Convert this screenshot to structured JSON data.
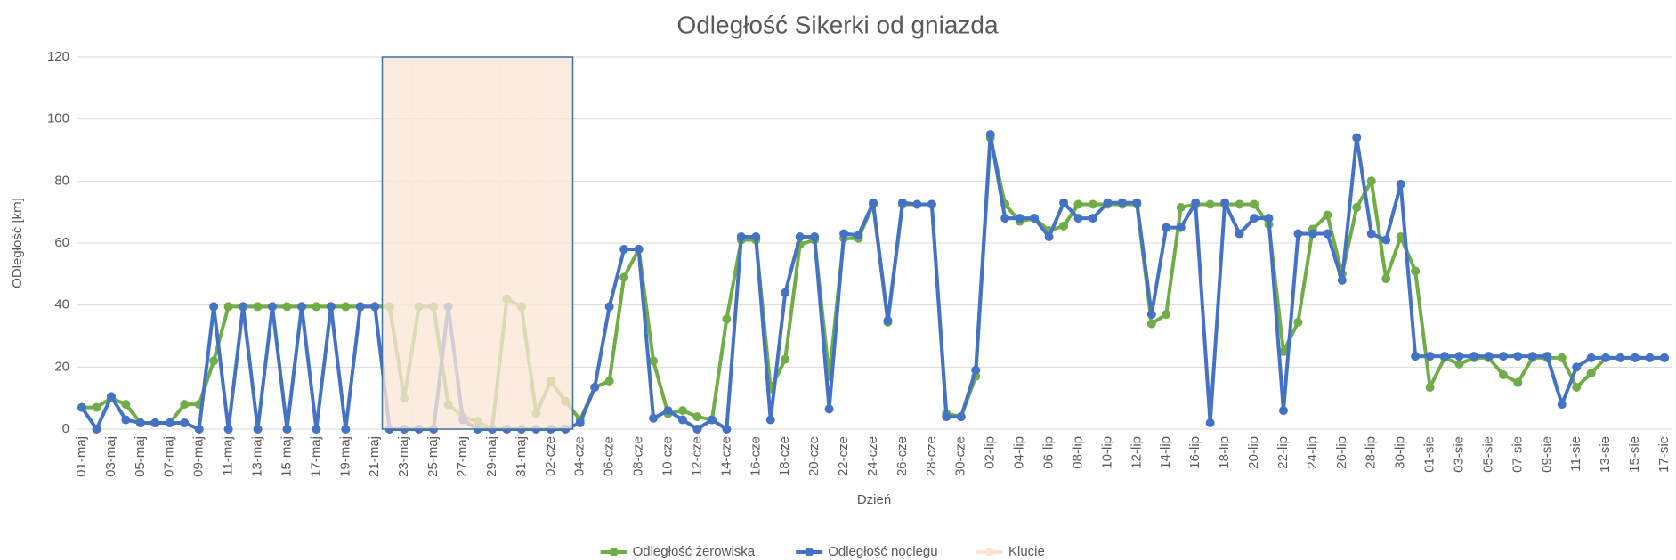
{
  "chart_data": {
    "type": "line",
    "title": "Odległość Sikerki od gniazda",
    "xlabel": "Dzień",
    "ylabel": "ODległość [km]",
    "categories": [
      "01-maj",
      null,
      "03-maj",
      null,
      "05-maj",
      null,
      "07-maj",
      null,
      "09-maj",
      null,
      "11-maj",
      null,
      "13-maj",
      null,
      "15-maj",
      null,
      "17-maj",
      null,
      "19-maj",
      null,
      "21-maj",
      null,
      "23-maj",
      null,
      "25-maj",
      null,
      "27-maj",
      null,
      "29-maj",
      null,
      "31-maj",
      null,
      "02-cze",
      null,
      "04-cze",
      null,
      "06-cze",
      null,
      "08-cze",
      null,
      "10-cze",
      null,
      "12-cze",
      null,
      "14-cze",
      null,
      "16-cze",
      null,
      "18-cze",
      null,
      "20-cze",
      null,
      "22-cze",
      null,
      "24-cze",
      null,
      "26-cze",
      null,
      "28-cze",
      null,
      "30-cze",
      null,
      "02-lip",
      null,
      "04-lip",
      null,
      "06-lip",
      null,
      "08-lip",
      null,
      "10-lip",
      null,
      "12-lip",
      null,
      "14-lip",
      null,
      "16-lip",
      null,
      "18-lip",
      null,
      "20-lip",
      null,
      "22-lip",
      null,
      "24-lip",
      null,
      "26-lip",
      null,
      "28-lip",
      null,
      "30-lip",
      null,
      "01-sie",
      null,
      "03-sie",
      null,
      "05-sie",
      null,
      "07-sie",
      null,
      "09-sie",
      null,
      "11-sie",
      null,
      "13-sie",
      null,
      "15-sie",
      null,
      "17-sie"
    ],
    "series": [
      {
        "name": "Odległość żerowiska",
        "color": "#70ad47",
        "values": [
          7,
          7,
          10,
          8,
          2,
          2,
          2,
          8,
          8,
          22,
          39.5,
          39.5,
          39.5,
          39.5,
          39.5,
          39.5,
          39.5,
          39.5,
          39.5,
          39.5,
          39.5,
          39.5,
          10,
          39.5,
          39.5,
          8,
          4,
          2.5,
          0,
          42,
          39.5,
          5,
          15.5,
          9,
          3,
          13.5,
          15.5,
          49,
          58,
          22,
          5,
          6,
          4,
          3,
          35.5,
          61,
          61,
          13,
          22.5,
          59.5,
          61,
          17,
          61.5,
          61.5,
          72.5,
          34.5,
          72.5,
          72.5,
          72.5,
          5,
          4,
          17,
          94,
          72.5,
          67,
          68,
          64,
          65.5,
          72.5,
          72.5,
          72.5,
          72.5,
          72.5,
          34,
          37,
          71.5,
          72.5,
          72.5,
          72.5,
          72.5,
          72.5,
          66,
          25,
          34.5,
          64.5,
          69,
          50,
          71.5,
          80,
          48.5,
          62,
          51,
          13.5,
          23,
          21,
          23,
          23,
          17.5,
          15,
          23,
          23,
          23,
          13.5,
          18,
          23,
          23,
          23,
          23,
          23
        ]
      },
      {
        "name": "Odległość noclegu",
        "color": "#4472c4",
        "values": [
          7,
          0,
          10.5,
          3,
          2,
          2,
          2,
          2,
          0,
          39.5,
          0,
          39.5,
          0,
          39.5,
          0,
          39.5,
          0,
          39.5,
          0,
          39.5,
          39.5,
          0,
          0,
          0,
          0,
          39.5,
          3,
          0,
          0,
          0,
          0,
          0,
          0,
          0,
          2,
          13.5,
          39.5,
          58,
          58,
          3.5,
          6,
          3,
          0,
          3,
          0,
          62,
          62,
          3,
          44,
          62,
          62,
          6.5,
          63,
          62.5,
          73,
          35,
          73,
          72.5,
          72.5,
          4,
          4,
          19,
          95,
          68,
          68,
          68,
          62,
          73,
          68,
          68,
          73,
          73,
          73,
          37,
          65,
          65,
          73,
          2,
          73,
          63,
          68,
          68,
          6,
          63,
          63,
          63,
          48,
          94,
          63,
          61,
          79,
          23.5,
          23.5,
          23.5,
          23.5,
          23.5,
          23.5,
          23.5,
          23.5,
          23.5,
          23.5,
          8,
          20,
          23,
          23,
          23,
          23,
          23,
          23
        ]
      },
      {
        "name": "Klucie",
        "type": "bar",
        "color": "#fbe5d6",
        "edgecolor": "#41719c",
        "values": [
          null,
          null,
          null,
          null,
          null,
          null,
          null,
          null,
          null,
          null,
          null,
          null,
          null,
          null,
          null,
          null,
          null,
          null,
          null,
          null,
          null,
          120,
          120,
          120,
          120,
          120,
          120,
          120,
          120,
          120,
          120,
          120,
          120,
          120,
          null,
          null,
          null,
          null,
          null,
          null,
          null,
          null,
          null,
          null,
          null,
          null,
          null,
          null,
          null,
          null,
          null,
          null,
          null,
          null,
          null,
          null,
          null,
          null,
          null,
          null,
          null,
          null,
          null,
          null,
          null,
          null,
          null,
          null,
          null,
          null,
          null,
          null,
          null,
          null,
          null,
          null,
          null,
          null,
          null,
          null,
          null,
          null,
          null,
          null,
          null,
          null,
          null,
          null,
          null,
          null,
          null,
          null,
          null,
          null,
          null,
          null,
          null,
          null,
          null,
          null,
          null,
          null,
          null,
          null,
          null,
          null,
          null,
          null,
          null
        ]
      }
    ],
    "ylim": [
      0,
      120
    ],
    "yticks": [
      0,
      20,
      40,
      60,
      80,
      100,
      120
    ],
    "grid": true,
    "legend": "bottom"
  }
}
